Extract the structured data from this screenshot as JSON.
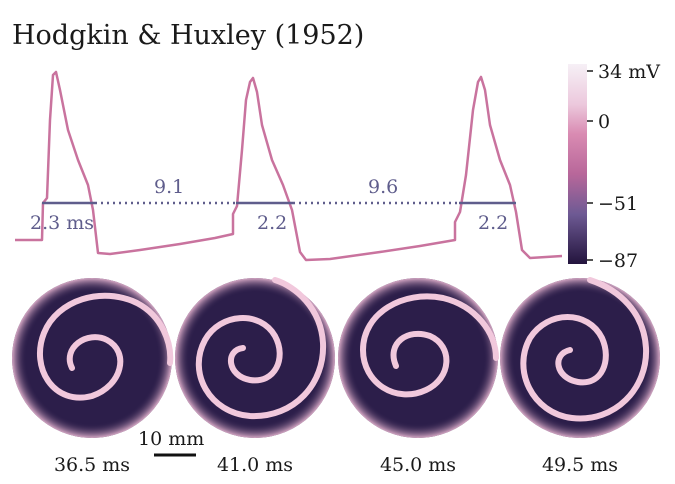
{
  "title": "Hodgkin & Huxley (1952)",
  "trace": {
    "color": "#c9739e",
    "apd_bar_color": "#5f5d8c",
    "apd_labels": [
      "2.3 ms",
      "2.2",
      "2.2"
    ],
    "interval_labels": [
      "9.1",
      "9.6"
    ]
  },
  "colorbar": {
    "ticks": [
      "34 mV",
      "0",
      "−51",
      "−87"
    ],
    "colors": [
      "#f6f0f6",
      "#e6b4cf",
      "#c96b98",
      "#7d5f95",
      "#23143d"
    ]
  },
  "panels": {
    "times": [
      "36.5 ms",
      "41.0 ms",
      "45.0 ms",
      "49.5 ms"
    ],
    "background": "#2c1e4a",
    "wave_color": "#f1c8dc"
  },
  "scale_bar": {
    "label": "10 mm"
  }
}
